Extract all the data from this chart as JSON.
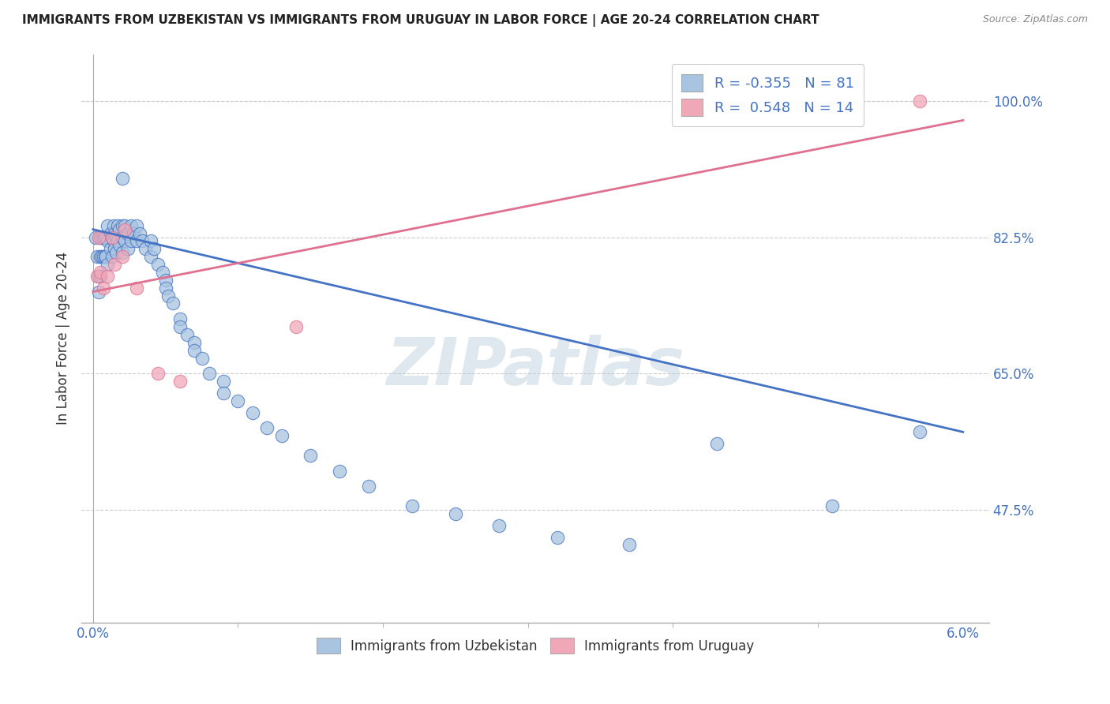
{
  "title": "IMMIGRANTS FROM UZBEKISTAN VS IMMIGRANTS FROM URUGUAY IN LABOR FORCE | AGE 20-24 CORRELATION CHART",
  "source": "Source: ZipAtlas.com",
  "ylabel": "In Labor Force | Age 20-24",
  "ytick_labels": [
    "100.0%",
    "82.5%",
    "65.0%",
    "47.5%"
  ],
  "ytick_values": [
    1.0,
    0.825,
    0.65,
    0.475
  ],
  "xlim": [
    0.0,
    0.06
  ],
  "ylim": [
    0.33,
    1.06
  ],
  "legend_r_uzbekistan": "-0.355",
  "legend_n_uzbekistan": "81",
  "legend_r_uruguay": " 0.548",
  "legend_n_uruguay": "14",
  "color_uzbekistan": "#a8c4e0",
  "color_uruguay": "#f0a8b8",
  "color_line_uzbekistan": "#4472c4",
  "color_line_uruguay": "#e07090",
  "watermark": "ZIPatlas",
  "uz_x": [
    0.0002,
    0.0003,
    0.0004,
    0.0004,
    0.0005,
    0.0005,
    0.0005,
    0.0006,
    0.0006,
    0.0007,
    0.0007,
    0.0008,
    0.0008,
    0.0009,
    0.0009,
    0.001,
    0.001,
    0.001,
    0.0012,
    0.0012,
    0.0013,
    0.0013,
    0.0014,
    0.0014,
    0.0015,
    0.0015,
    0.0016,
    0.0016,
    0.0017,
    0.0017,
    0.0018,
    0.0018,
    0.002,
    0.002,
    0.002,
    0.0022,
    0.0022,
    0.0024,
    0.0024,
    0.0026,
    0.0026,
    0.0028,
    0.003,
    0.003,
    0.0032,
    0.0034,
    0.0036,
    0.004,
    0.004,
    0.0042,
    0.0045,
    0.0048,
    0.005,
    0.005,
    0.0052,
    0.0055,
    0.006,
    0.006,
    0.0065,
    0.007,
    0.007,
    0.0075,
    0.008,
    0.009,
    0.009,
    0.01,
    0.011,
    0.012,
    0.013,
    0.015,
    0.017,
    0.019,
    0.022,
    0.025,
    0.028,
    0.032,
    0.037,
    0.043,
    0.051,
    0.057,
    0.002
  ],
  "uz_y": [
    0.825,
    0.8,
    0.775,
    0.755,
    0.825,
    0.8,
    0.775,
    0.825,
    0.8,
    0.825,
    0.8,
    0.825,
    0.8,
    0.825,
    0.8,
    0.84,
    0.82,
    0.79,
    0.83,
    0.81,
    0.825,
    0.8,
    0.84,
    0.82,
    0.83,
    0.81,
    0.825,
    0.805,
    0.84,
    0.82,
    0.835,
    0.815,
    0.84,
    0.825,
    0.805,
    0.84,
    0.82,
    0.83,
    0.81,
    0.84,
    0.82,
    0.83,
    0.84,
    0.82,
    0.83,
    0.82,
    0.81,
    0.82,
    0.8,
    0.81,
    0.79,
    0.78,
    0.77,
    0.76,
    0.75,
    0.74,
    0.72,
    0.71,
    0.7,
    0.69,
    0.68,
    0.67,
    0.65,
    0.64,
    0.625,
    0.615,
    0.6,
    0.58,
    0.57,
    0.545,
    0.525,
    0.505,
    0.48,
    0.47,
    0.455,
    0.44,
    0.43,
    0.56,
    0.48,
    0.575,
    0.9
  ],
  "ur_x": [
    0.0003,
    0.0004,
    0.0005,
    0.0007,
    0.001,
    0.0013,
    0.0015,
    0.002,
    0.0022,
    0.003,
    0.0045,
    0.006,
    0.014,
    0.057
  ],
  "ur_y": [
    0.775,
    0.825,
    0.78,
    0.76,
    0.775,
    0.825,
    0.79,
    0.8,
    0.835,
    0.76,
    0.65,
    0.64,
    0.71,
    1.0
  ],
  "line_uz_x0": 0.0,
  "line_uz_y0": 0.835,
  "line_uz_x1": 0.06,
  "line_uz_y1": 0.575,
  "line_ur_x0": 0.0,
  "line_ur_y0": 0.755,
  "line_ur_x1": 0.06,
  "line_ur_y1": 0.975
}
